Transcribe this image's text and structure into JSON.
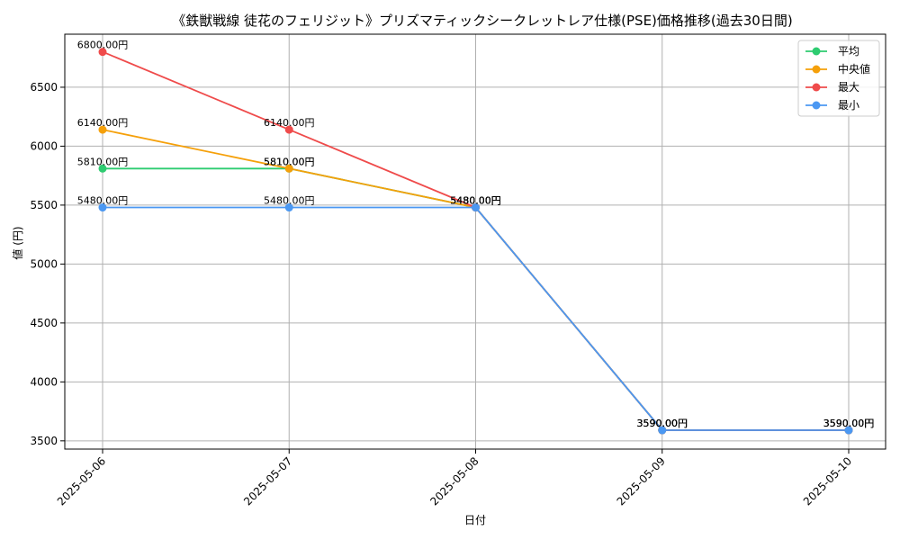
{
  "chart_data": {
    "type": "line",
    "title": "《鉄獣戦線 徒花のフェリジット》プリズマティックシークレットレア仕様(PSE)価格推移(過去30日間)",
    "xlabel": "日付",
    "ylabel": "値 (円)",
    "categories": [
      "2025-05-06",
      "2025-05-07",
      "2025-05-08",
      "2025-05-09",
      "2025-05-10"
    ],
    "ylim": [
      3430,
      6950
    ],
    "yticks": [
      3500,
      4000,
      4500,
      5000,
      5500,
      6000,
      6500
    ],
    "grid": true,
    "legend_position": "top-right",
    "label_suffix": "円",
    "series": [
      {
        "name": "平均",
        "color": "#2ecc71",
        "values": [
          5810,
          5810,
          5480,
          3590,
          3590
        ]
      },
      {
        "name": "中央値",
        "color": "#f5a00a",
        "values": [
          6140,
          5810,
          5480,
          3590,
          3590
        ]
      },
      {
        "name": "最大",
        "color": "#ef4b4b",
        "values": [
          6800,
          6140,
          5480,
          3590,
          3590
        ]
      },
      {
        "name": "最小",
        "color": "#4b98f2",
        "values": [
          5480,
          5480,
          5480,
          3590,
          3590
        ]
      }
    ]
  }
}
